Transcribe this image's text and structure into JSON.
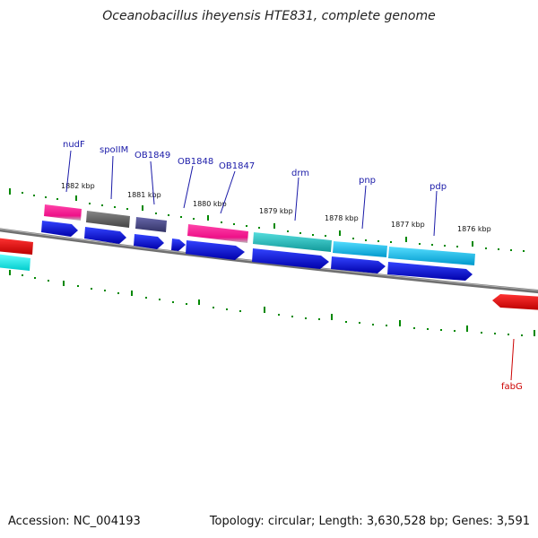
{
  "title": "Oceanobacillus iheyensis HTE831, complete genome",
  "accession": {
    "label": "Accession:",
    "value": "NC_004193"
  },
  "summary": {
    "topology_label": "Topology:",
    "topology": "circular",
    "length_label": "Length:",
    "length": "3,630,528 bp",
    "genes_label": "Genes:",
    "genes": "3,591"
  },
  "kbp_ticks": [
    "1882 kbp",
    "1881 kbp",
    "1880 kbp",
    "1879 kbp",
    "1878 kbp",
    "1877 kbp",
    "1876 kbp"
  ],
  "gene_labels": [
    "nudF",
    "spoIIM",
    "OB1849",
    "OB1848",
    "OB1847",
    "drm",
    "pnp",
    "pdp",
    "fabG"
  ],
  "colors": {
    "backbone": "#808080",
    "forward_cds": "#0000ee",
    "tick_green": "#008800",
    "pink": "#ee1188",
    "gray": "#666666",
    "slate": "#444488",
    "teal": "#22bbbb",
    "cyan": "#11bbee",
    "red": "#ee0000",
    "label_blue": "#1a1aa8",
    "label_red": "#cc0000"
  }
}
